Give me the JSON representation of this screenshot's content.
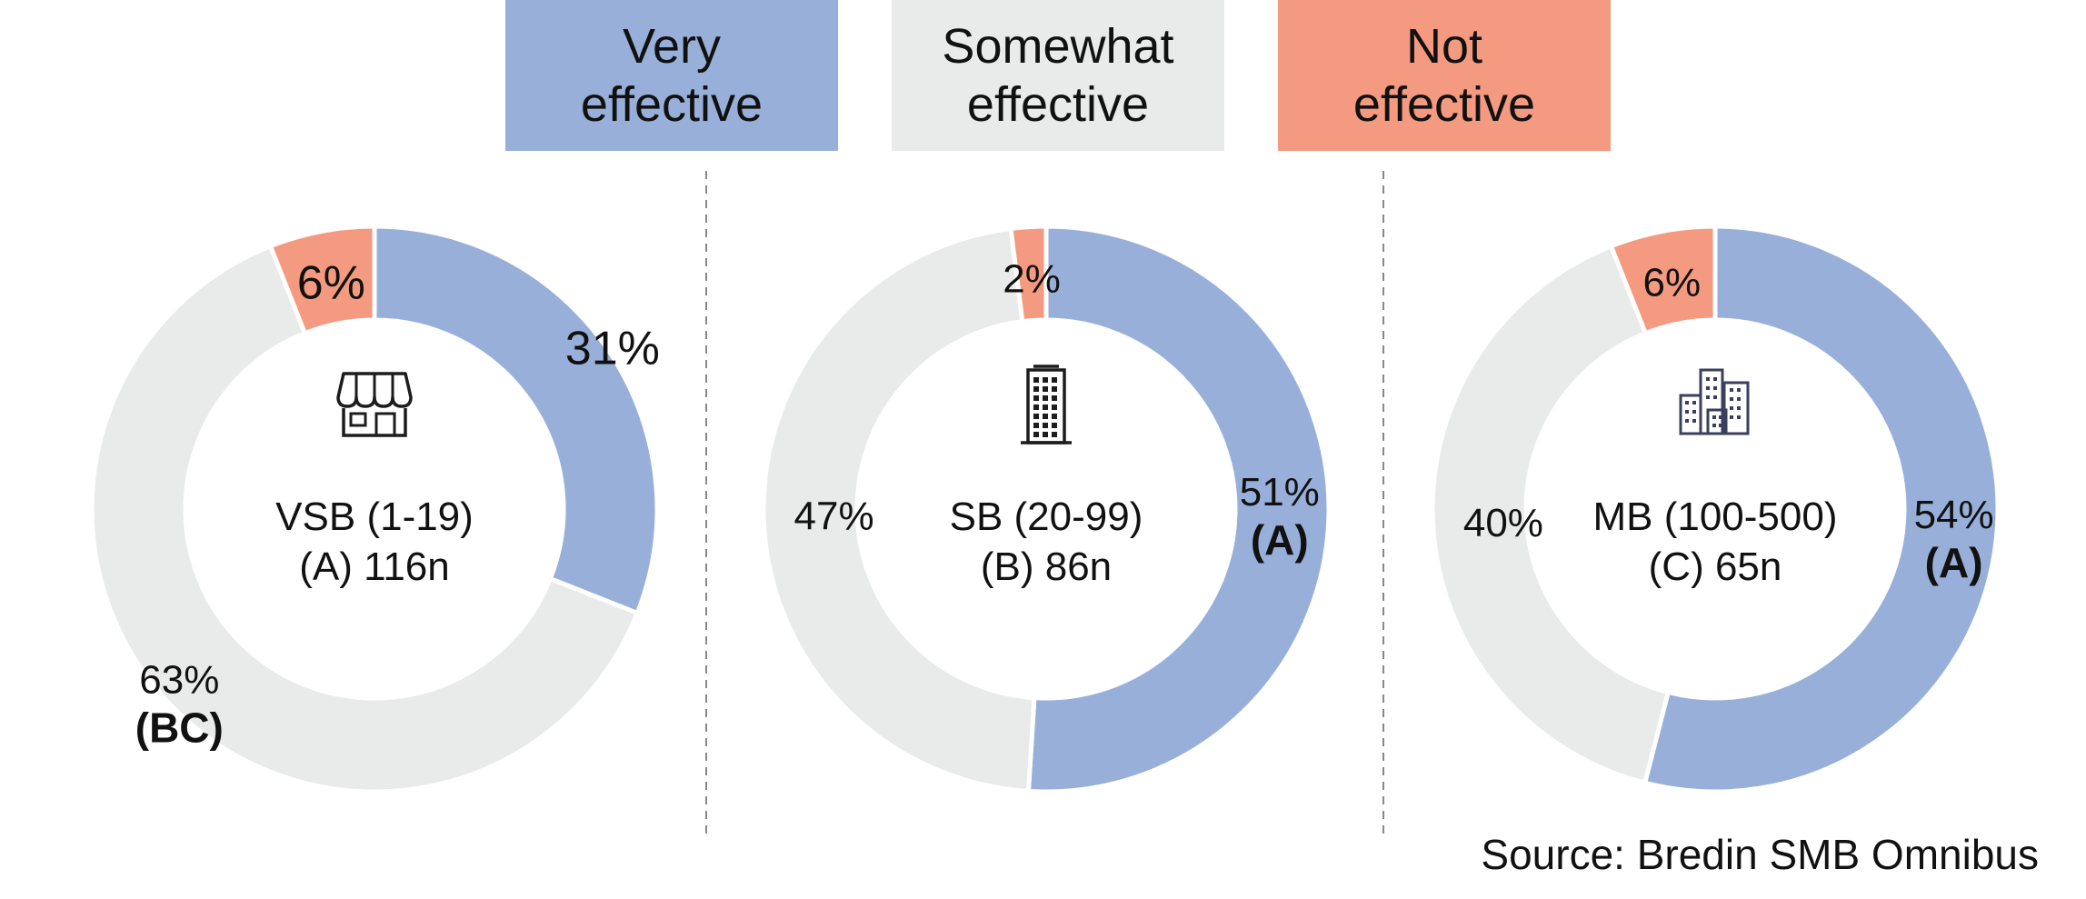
{
  "chart_data": {
    "type": "pie",
    "legend": {
      "placement": "top",
      "entries": [
        {
          "label": "Very\neffective",
          "color": "#98B0D9"
        },
        {
          "label": "Somewhat\neffective",
          "color": "#E9EBEA"
        },
        {
          "label": "Not\neffective",
          "color": "#F49A80"
        }
      ]
    },
    "categories": [
      "Very effective",
      "Somewhat effective",
      "Not effective"
    ],
    "charts": [
      {
        "center_label": [
          "VSB (1-19)",
          "(A) 116n"
        ],
        "icon": "storefront-icon",
        "values": [
          31,
          63,
          6
        ],
        "data_labels": [
          {
            "value": "31%",
            "sig": ""
          },
          {
            "value": "63%",
            "sig": "(BC)"
          },
          {
            "value": "6%",
            "sig": ""
          }
        ]
      },
      {
        "center_label": [
          "SB (20-99)",
          "(B) 86n"
        ],
        "icon": "office-building-icon",
        "values": [
          51,
          47,
          2
        ],
        "data_labels": [
          {
            "value": "51%",
            "sig": "(A)"
          },
          {
            "value": "47%",
            "sig": ""
          },
          {
            "value": "2%",
            "sig": ""
          }
        ]
      },
      {
        "center_label": [
          "MB (100-500)",
          "(C) 65n"
        ],
        "icon": "city-buildings-icon",
        "values": [
          54,
          40,
          6
        ],
        "data_labels": [
          {
            "value": "54%",
            "sig": "(A)"
          },
          {
            "value": "40%",
            "sig": ""
          },
          {
            "value": "6%",
            "sig": ""
          }
        ]
      }
    ]
  },
  "source": "Source: Bredin SMB Omnibus"
}
